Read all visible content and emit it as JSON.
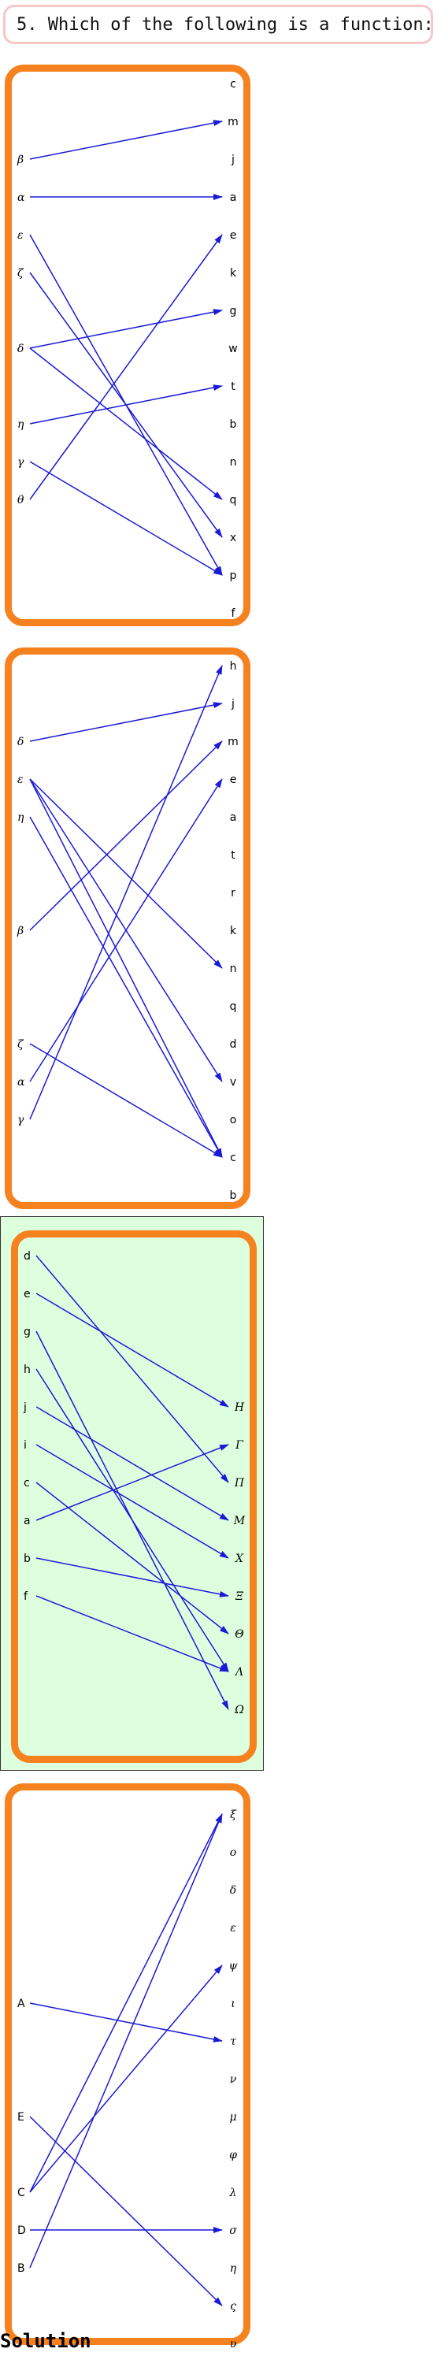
{
  "question": "5. Which of the following is a function:",
  "solution_label": "Solution",
  "colors": {
    "arrow": "#1a1ad6",
    "panel_border": "#f5821f",
    "solution_bg": "#deffde",
    "question_border": "#f7c7c7"
  },
  "diagrams": [
    {
      "name": "option-1",
      "left": [
        "β",
        "α",
        "ε",
        "ζ",
        "δ",
        "η",
        "γ",
        "θ"
      ],
      "right": [
        "c",
        "m",
        "j",
        "a",
        "e",
        "k",
        "g",
        "w",
        "t",
        "b",
        "n",
        "q",
        "x",
        "p",
        "f"
      ],
      "arrows": [
        [
          "β",
          "m"
        ],
        [
          "α",
          "a"
        ],
        [
          "ε",
          "p"
        ],
        [
          "ζ",
          "x"
        ],
        [
          "δ",
          "g"
        ],
        [
          "δ",
          "q"
        ],
        [
          "η",
          "t"
        ],
        [
          "γ",
          "p"
        ],
        [
          "θ",
          "e"
        ]
      ]
    },
    {
      "name": "option-2",
      "left": [
        "δ",
        "ε",
        "η",
        "β",
        "ζ",
        "α",
        "γ"
      ],
      "right": [
        "h",
        "j",
        "m",
        "e",
        "a",
        "t",
        "r",
        "k",
        "n",
        "q",
        "d",
        "v",
        "o",
        "c",
        "b"
      ],
      "arrows": [
        [
          "δ",
          "j"
        ],
        [
          "ε",
          "n"
        ],
        [
          "ε",
          "v"
        ],
        [
          "ε",
          "c"
        ],
        [
          "η",
          "c"
        ],
        [
          "β",
          "m"
        ],
        [
          "ζ",
          "c"
        ],
        [
          "α",
          "e"
        ],
        [
          "γ",
          "h"
        ]
      ]
    },
    {
      "name": "option-3",
      "left": [
        "d",
        "e",
        "g",
        "h",
        "j",
        "i",
        "c",
        "a",
        "b",
        "f"
      ],
      "right": [
        "Η",
        "Γ",
        "Π",
        "Μ",
        "Χ",
        "Ξ",
        "Θ",
        "Λ",
        "Ω"
      ],
      "arrows": [
        [
          "d",
          "Π"
        ],
        [
          "e",
          "Η"
        ],
        [
          "g",
          "Ω"
        ],
        [
          "h",
          "Λ"
        ],
        [
          "j",
          "Μ"
        ],
        [
          "i",
          "Χ"
        ],
        [
          "c",
          "Θ"
        ],
        [
          "a",
          "Γ"
        ],
        [
          "b",
          "Ξ"
        ],
        [
          "f",
          "Λ"
        ]
      ],
      "solution": true
    },
    {
      "name": "option-4",
      "left": [
        "A",
        "E",
        "C",
        "D",
        "B"
      ],
      "right": [
        "ξ",
        "ο",
        "δ",
        "ε",
        "ψ",
        "ι",
        "τ",
        "ν",
        "μ",
        "φ",
        "λ",
        "σ",
        "η",
        "ς",
        "υ"
      ],
      "arrows": [
        [
          "A",
          "τ"
        ],
        [
          "E",
          "ς"
        ],
        [
          "C",
          "ξ"
        ],
        [
          "C",
          "ψ"
        ],
        [
          "D",
          "σ"
        ],
        [
          "B",
          "ξ"
        ]
      ]
    }
  ]
}
